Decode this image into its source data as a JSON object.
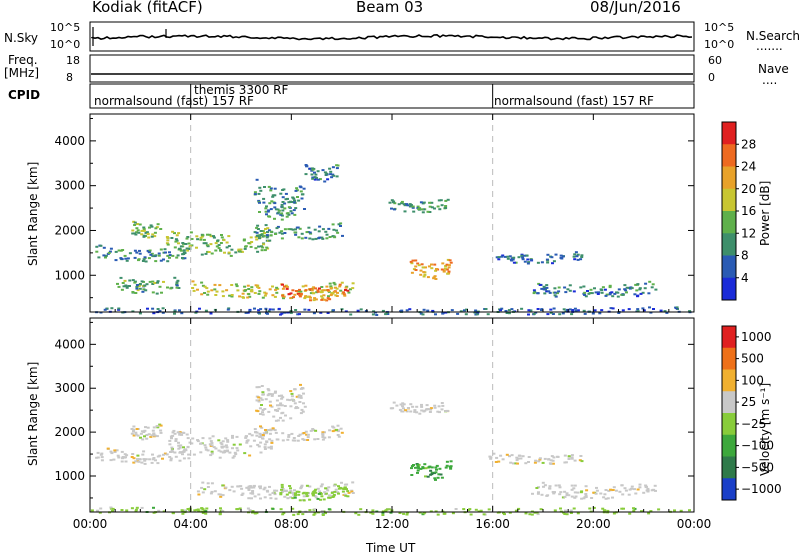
{
  "header": {
    "station": "Kodiak (fitACF)",
    "beam": "Beam 03",
    "date": "08/Jun/2016"
  },
  "strip_panels": {
    "nsky": {
      "label": "N.Sky",
      "ticks": [
        "10^5",
        "10^0"
      ],
      "right_ticks": [
        "10^5",
        "10^0"
      ],
      "right_label": "N.Search",
      "right_key": "......."
    },
    "freq": {
      "label_line1": "Freq.",
      "label_line2": "[MHz]",
      "ticks": [
        "18",
        "8"
      ],
      "right_ticks": [
        "60",
        "0"
      ],
      "right_label": "Nave",
      "right_key": "...."
    },
    "cpid": {
      "label": "CPID",
      "segments": [
        {
          "text": "normalsound (fast) 157 RF",
          "start": "00:00"
        },
        {
          "text": "themis 3300 RF",
          "start": "04:00"
        },
        {
          "text": "normalsound (fast) 157 RF",
          "start": "16:00"
        }
      ]
    }
  },
  "x_axis": {
    "label": "Time UT",
    "ticks": [
      "00:00",
      "04:00",
      "08:00",
      "12:00",
      "16:00",
      "20:00",
      "00:00"
    ]
  },
  "chart_data": [
    {
      "type": "heatmap",
      "name": "power",
      "ylabel": "Slant Range [km]",
      "x_range_hours": [
        0,
        24
      ],
      "ylim": [
        180,
        4600
      ],
      "yticks": [
        "1000",
        "2000",
        "3000",
        "4000"
      ],
      "colorbar": {
        "label": "Power [dB]",
        "ticks": [
          "4",
          "8",
          "12",
          "16",
          "20",
          "24",
          "28"
        ],
        "colors": [
          "#1a2bd8",
          "#2a5bb4",
          "#3e8f6b",
          "#5fb04b",
          "#c8c632",
          "#e8a22a",
          "#ee6a20",
          "#e02020"
        ],
        "range": [
          0,
          32
        ]
      },
      "bands": [
        {
          "t0": 0.2,
          "t1": 3.9,
          "r0": 1400,
          "r1": 1700,
          "level": 10
        },
        {
          "t0": 1.6,
          "t1": 2.8,
          "r0": 1950,
          "r1": 2250,
          "level": 14
        },
        {
          "t0": 1.0,
          "t1": 3.5,
          "r0": 700,
          "r1": 1000,
          "level": 12
        },
        {
          "t0": 3.0,
          "t1": 7.2,
          "r0": 1600,
          "r1": 2100,
          "level": 14
        },
        {
          "t0": 6.5,
          "t1": 10.0,
          "r0": 1900,
          "r1": 2200,
          "level": 10
        },
        {
          "t0": 4.0,
          "t1": 10.5,
          "r0": 600,
          "r1": 900,
          "level": 18
        },
        {
          "t0": 7.5,
          "t1": 10.2,
          "r0": 550,
          "r1": 850,
          "level": 24
        },
        {
          "t0": 6.5,
          "t1": 8.5,
          "r0": 2500,
          "r1": 3200,
          "level": 10
        },
        {
          "t0": 8.5,
          "t1": 9.8,
          "r0": 3200,
          "r1": 3500,
          "level": 8
        },
        {
          "t0": 11.8,
          "t1": 14.2,
          "r0": 2500,
          "r1": 2750,
          "level": 10
        },
        {
          "t0": 12.7,
          "t1": 14.3,
          "r0": 1050,
          "r1": 1400,
          "level": 22
        },
        {
          "t0": 15.8,
          "t1": 19.5,
          "r0": 1350,
          "r1": 1550,
          "level": 8
        },
        {
          "t0": 17.5,
          "t1": 22.5,
          "r0": 600,
          "r1": 900,
          "level": 8
        },
        {
          "t0": 0.0,
          "t1": 23.8,
          "r0": 180,
          "r1": 320,
          "level": 6
        }
      ]
    },
    {
      "type": "heatmap",
      "name": "velocity",
      "ylabel": "Slant Range [km]",
      "x_range_hours": [
        0,
        24
      ],
      "ylim": [
        180,
        4600
      ],
      "yticks": [
        "1000",
        "2000",
        "3000",
        "4000"
      ],
      "colorbar": {
        "label": "Velocity [m s⁻¹]",
        "ticks": [
          "1000",
          "500",
          "100",
          "25",
          "−25",
          "−100",
          "−500",
          "−1000"
        ],
        "colors": [
          "#1a3fc8",
          "#2f7a4a",
          "#3da83c",
          "#88cc3a",
          "#c8c8c8",
          "#f0b030",
          "#ee7018",
          "#e02020"
        ]
      },
      "bands": [
        {
          "t0": 0.2,
          "t1": 3.9,
          "r0": 1400,
          "r1": 1700,
          "level": 4
        },
        {
          "t0": 1.6,
          "t1": 2.8,
          "r0": 1950,
          "r1": 2250,
          "level": 4
        },
        {
          "t0": 3.0,
          "t1": 7.2,
          "r0": 1600,
          "r1": 2100,
          "level": 4
        },
        {
          "t0": 6.5,
          "t1": 10.0,
          "r0": 1900,
          "r1": 2200,
          "level": 4
        },
        {
          "t0": 4.0,
          "t1": 10.5,
          "r0": 600,
          "r1": 900,
          "level": 4
        },
        {
          "t0": 7.5,
          "t1": 10.2,
          "r0": 550,
          "r1": 850,
          "level": 3
        },
        {
          "t0": 6.5,
          "t1": 8.5,
          "r0": 2500,
          "r1": 3200,
          "level": 4
        },
        {
          "t0": 11.8,
          "t1": 14.2,
          "r0": 2500,
          "r1": 2750,
          "level": 4
        },
        {
          "t0": 12.7,
          "t1": 14.3,
          "r0": 1050,
          "r1": 1400,
          "level": 2
        },
        {
          "t0": 15.8,
          "t1": 19.5,
          "r0": 1350,
          "r1": 1550,
          "level": 4
        },
        {
          "t0": 17.5,
          "t1": 22.5,
          "r0": 600,
          "r1": 900,
          "level": 4
        },
        {
          "t0": 0.0,
          "t1": 23.8,
          "r0": 180,
          "r1": 320,
          "level": 3
        }
      ]
    }
  ]
}
